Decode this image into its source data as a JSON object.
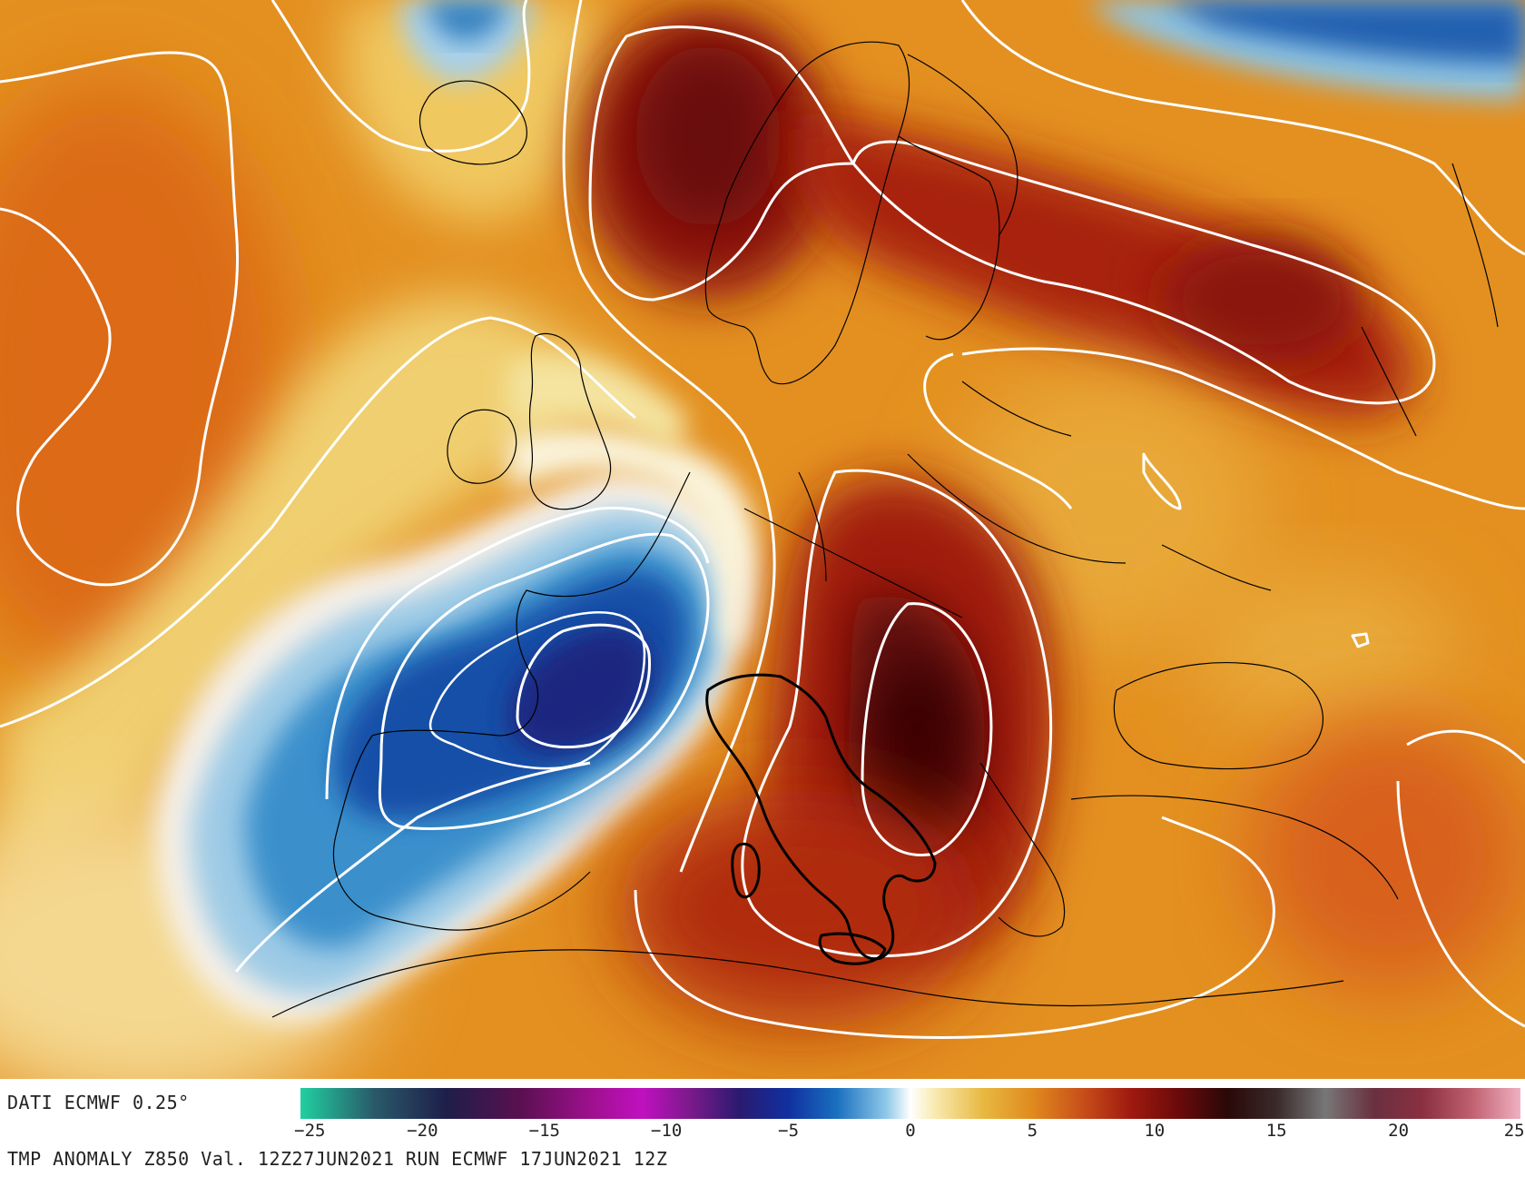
{
  "map": {
    "region": "Europe / North Atlantic",
    "contour_color": "#ffffff",
    "coast_color": "#000000",
    "highlighted_country": "Italy"
  },
  "legend": {
    "min": -25,
    "max": 25,
    "ticks": [
      "−25",
      "−20",
      "−15",
      "−10",
      "−5",
      "0",
      "5",
      "10",
      "15",
      "20",
      "25"
    ],
    "tick_values": [
      -25,
      -20,
      -15,
      -10,
      -5,
      0,
      5,
      10,
      15,
      20,
      25
    ],
    "colors": [
      {
        "v": -25,
        "c": "#1fd0a0"
      },
      {
        "v": -22,
        "c": "#2a5a6a"
      },
      {
        "v": -19,
        "c": "#1e1e4a"
      },
      {
        "v": -16,
        "c": "#5a1050"
      },
      {
        "v": -13,
        "c": "#a01090"
      },
      {
        "v": -11,
        "c": "#c010c0"
      },
      {
        "v": -9,
        "c": "#7a1a8a"
      },
      {
        "v": -7,
        "c": "#2a1a70"
      },
      {
        "v": -5,
        "c": "#1030a0"
      },
      {
        "v": -3,
        "c": "#1a70c0"
      },
      {
        "v": -1,
        "c": "#8ec8e8"
      },
      {
        "v": 0,
        "c": "#ffffff"
      },
      {
        "v": 1,
        "c": "#f8eab0"
      },
      {
        "v": 3,
        "c": "#e8b840"
      },
      {
        "v": 5,
        "c": "#e08a1e"
      },
      {
        "v": 7,
        "c": "#c8501a"
      },
      {
        "v": 9,
        "c": "#a01a10"
      },
      {
        "v": 11,
        "c": "#6a0a0a"
      },
      {
        "v": 13,
        "c": "#2a0808"
      },
      {
        "v": 15,
        "c": "#3a2a2a"
      },
      {
        "v": 17,
        "c": "#777777"
      },
      {
        "v": 19,
        "c": "#6a3040"
      },
      {
        "v": 21,
        "c": "#8a3040"
      },
      {
        "v": 23,
        "c": "#c06070"
      },
      {
        "v": 25,
        "c": "#f0b0c0"
      }
    ]
  },
  "footer": {
    "source": "DATI ECMWF 0.25°",
    "title": "TMP ANOMALY Z850 Val. 12Z27JUN2021 RUN ECMWF 17JUN2021 12Z"
  }
}
